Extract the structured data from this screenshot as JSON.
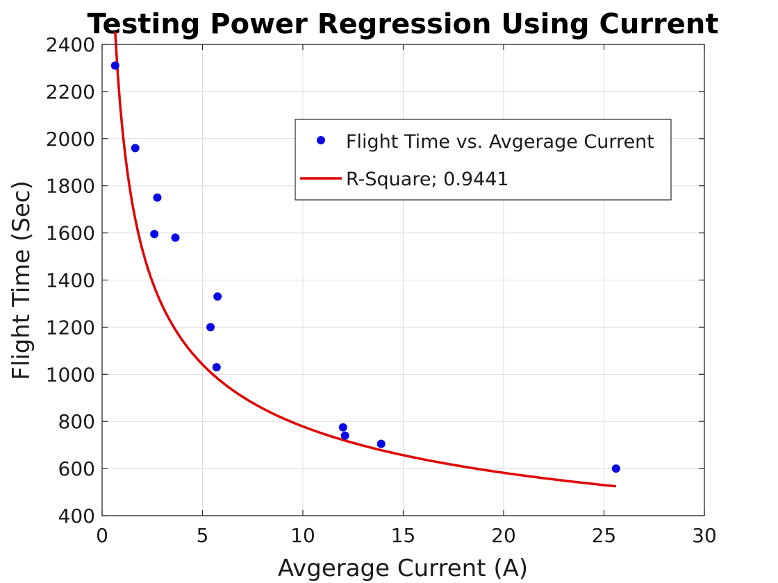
{
  "chart_data": {
    "type": "scatter",
    "title": "Testing Power Regression Using Current",
    "xlabel": "Avgerage Current (A)",
    "ylabel": "Flight Time (Sec)",
    "xlim": [
      0,
      30
    ],
    "ylim": [
      400,
      2400
    ],
    "xticks": [
      0,
      5,
      10,
      15,
      20,
      25,
      30
    ],
    "yticks": [
      400,
      600,
      800,
      1000,
      1200,
      1400,
      1600,
      1800,
      2000,
      2200,
      2400
    ],
    "grid": true,
    "legend_position": "top-right",
    "series": [
      {
        "name": "Flight Time vs. Avgerage Current",
        "kind": "points",
        "color": "#0a0ae6",
        "x": [
          0.65,
          1.65,
          2.6,
          2.75,
          3.65,
          5.4,
          5.7,
          5.75,
          12.0,
          12.1,
          13.9,
          25.6
        ],
        "y": [
          2310,
          1960,
          1595,
          1750,
          1580,
          1200,
          1030,
          1330,
          775,
          740,
          705,
          600
        ]
      },
      {
        "name": "R-Square; 0.9441",
        "kind": "fit-line",
        "color": "#e00000",
        "model": "power",
        "a": 2048,
        "b": -0.42,
        "x_range": [
          0.65,
          25.6
        ]
      }
    ]
  }
}
